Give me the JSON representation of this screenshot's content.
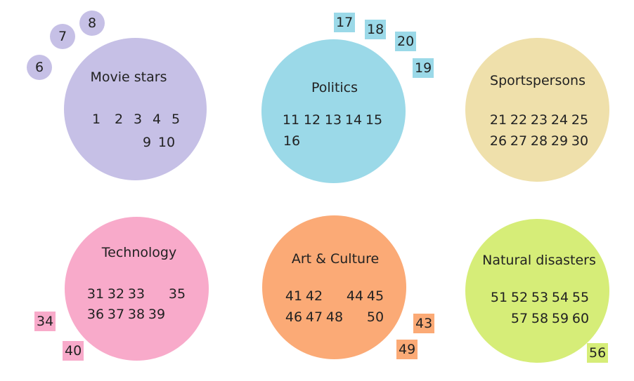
{
  "colors": {
    "movie": "#c6c0e6",
    "politics": "#9bd9e8",
    "sports": "#efe0ab",
    "technology": "#f8aaca",
    "art": "#fbaa76",
    "natural": "#d6ed78"
  },
  "groups": {
    "movie": {
      "title": "Movie stars",
      "numbers": {
        "n1": "1",
        "n2": "2",
        "n3": "3",
        "n4": "4",
        "n5": "5",
        "n9": "9",
        "n10": "10"
      },
      "outliers": {
        "o6": "6",
        "o7": "7",
        "o8": "8"
      }
    },
    "politics": {
      "title": "Politics",
      "numbers": {
        "n11": "11",
        "n12": "12",
        "n13": "13",
        "n14": "14",
        "n15": "15",
        "n16": "16"
      },
      "outliers": {
        "o17": "17",
        "o18": "18",
        "o19": "19",
        "o20": "20"
      }
    },
    "sports": {
      "title": "Sportspersons",
      "numbers": {
        "n21": "21",
        "n22": "22",
        "n23": "23",
        "n24": "24",
        "n25": "25",
        "n26": "26",
        "n27": "27",
        "n28": "28",
        "n29": "29",
        "n30": "30"
      }
    },
    "technology": {
      "title": "Technology",
      "numbers": {
        "n31": "31",
        "n32": "32",
        "n33": "33",
        "n35": "35",
        "n36": "36",
        "n37": "37",
        "n38": "38",
        "n39": "39"
      },
      "outliers": {
        "o34": "34",
        "o40": "40"
      }
    },
    "art": {
      "title": "Art & Culture",
      "numbers": {
        "n41": "41",
        "n42": "42",
        "n44": "44",
        "n45": "45",
        "n46": "46",
        "n47": "47",
        "n48": "48",
        "n50": "50"
      },
      "outliers": {
        "o43": "43",
        "o49": "49"
      }
    },
    "natural": {
      "title": "Natural disasters",
      "numbers": {
        "n51": "51",
        "n52": "52",
        "n53": "53",
        "n54": "54",
        "n55": "55",
        "n57": "57",
        "n58": "58",
        "n59": "59",
        "n60": "60"
      },
      "outliers": {
        "o56": "56"
      }
    }
  }
}
